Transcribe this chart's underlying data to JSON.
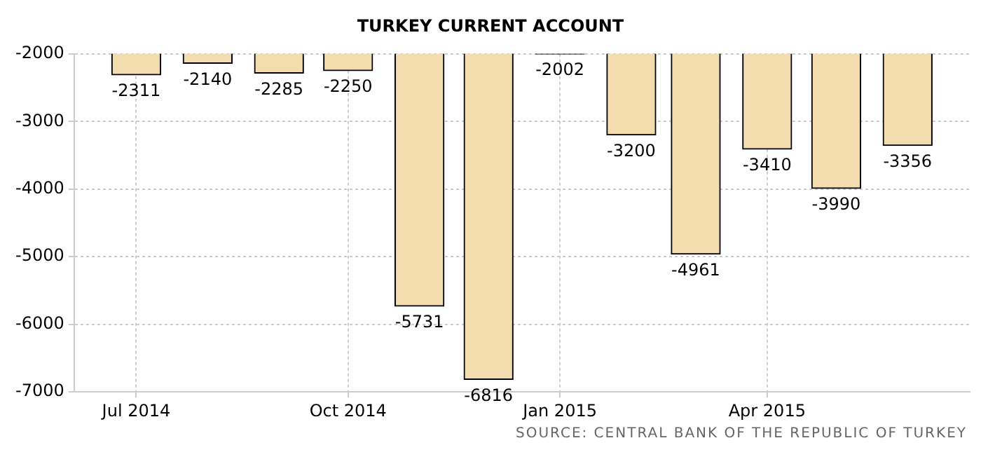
{
  "chart_data": {
    "type": "bar",
    "title": "TURKEY CURRENT ACCOUNT",
    "x": [
      "2014-07",
      "2014-08",
      "2014-09",
      "2014-10",
      "2014-11",
      "2014-12",
      "2015-01",
      "2015-02",
      "2015-03",
      "2015-04",
      "2015-05",
      "2015-06"
    ],
    "values": [
      -2311,
      -2140,
      -2285,
      -2250,
      -5731,
      -6816,
      -2002,
      -3200,
      -4961,
      -3410,
      -3990,
      -3356
    ],
    "color": "#f3dcae",
    "xlim": [
      "2014-06-04",
      "2015-06-28"
    ],
    "xticks": [
      {
        "value": "2014-07",
        "label": "Jul 2014"
      },
      {
        "value": "2014-10",
        "label": "Oct 2014"
      },
      {
        "value": "2015-01",
        "label": "Jan 2015"
      },
      {
        "value": "2015-04",
        "label": "Apr 2015"
      }
    ],
    "ylim": [
      -7000,
      -2000
    ],
    "yticks": [
      -7000,
      -6000,
      -5000,
      -4000,
      -3000,
      -2000
    ],
    "grid": true,
    "data_labels": true,
    "annotations": [
      "SOURCE: CENTRAL BANK OF THE REPUBLIC OF TURKEY"
    ]
  }
}
